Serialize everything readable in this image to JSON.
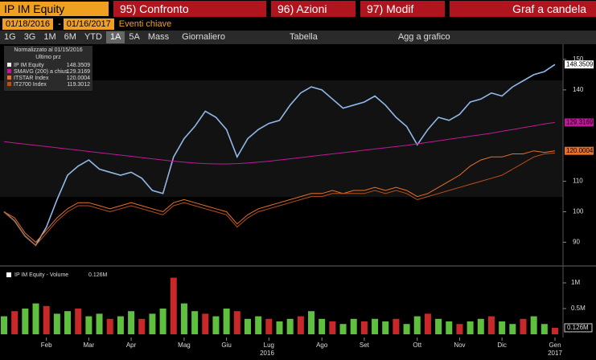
{
  "toolbar": {
    "ticker": "IP IM Equity",
    "menus": [
      "95) Confronto",
      "96) Azioni",
      "97) Modif"
    ],
    "chart_type": "Graf a candela",
    "start_date": "01/18/2016",
    "date_separator": "-",
    "end_date": "01/16/2017",
    "events": "Eventi chiave",
    "periods": [
      "1G",
      "3G",
      "1M",
      "6M",
      "YTD",
      "1A",
      "5A",
      "Mass"
    ],
    "frequency": "Giornaliero",
    "table": "Tabella",
    "add_to_chart": "Agg a grafico"
  },
  "chart_data": [
    {
      "type": "line",
      "legend_title": "Normalizzato al 01/15/2016",
      "legend_subtitle": "Ultimo prz",
      "categories": [
        null,
        null,
        null,
        null,
        "Feb",
        null,
        null,
        null,
        "Mar",
        null,
        null,
        null,
        "Apr",
        null,
        null,
        null,
        null,
        "Mag",
        null,
        null,
        null,
        "Giu",
        null,
        null,
        null,
        "Lug",
        null,
        null,
        null,
        null,
        "Ago",
        null,
        null,
        null,
        "Set",
        null,
        null,
        null,
        null,
        "Ott",
        null,
        null,
        null,
        "Nov",
        null,
        null,
        null,
        "Dic",
        null,
        null,
        null,
        null,
        "Gen"
      ],
      "year_labels": [
        "2016",
        "2017"
      ],
      "ylim": [
        83,
        155
      ],
      "yticks": [
        90,
        100,
        110,
        140,
        150
      ],
      "series": [
        {
          "name": "IP IM Equity",
          "color": "#8fb8e8",
          "values": [
            100,
            97,
            92,
            89,
            95,
            104,
            112,
            115,
            117,
            114,
            113,
            112,
            113,
            111,
            107,
            106,
            118,
            124,
            128,
            133,
            131,
            127,
            118,
            124,
            127,
            129,
            130,
            135,
            139,
            141,
            140,
            137,
            134,
            135,
            136,
            138,
            135,
            131,
            128,
            122,
            127,
            131,
            130,
            132,
            136,
            137,
            139,
            138,
            141,
            143,
            145,
            146,
            148.3509
          ]
        },
        {
          "name": "SMAVG (200) a chius",
          "color": "#c0189a",
          "values": [
            123,
            122.6,
            122.2,
            121.8,
            121.4,
            121,
            120.6,
            120.2,
            119.8,
            119.4,
            119,
            118.6,
            118.2,
            117.8,
            117.4,
            117,
            116.6,
            116.3,
            116,
            115.8,
            115.7,
            115.7,
            115.8,
            116,
            116.3,
            116.6,
            117,
            117.4,
            117.8,
            118.2,
            118.6,
            119,
            119.4,
            119.8,
            120.2,
            120.6,
            121,
            121.4,
            121.8,
            122.3,
            122.8,
            123.3,
            123.8,
            124.3,
            124.8,
            125.3,
            125.8,
            126.4,
            127,
            127.6,
            128.2,
            128.8,
            129.3169
          ]
        },
        {
          "name": "ITSTAR Index",
          "color": "#e8702a",
          "values": [
            100,
            98,
            93,
            90,
            94,
            98,
            101,
            103,
            103,
            102,
            101,
            102,
            103,
            102,
            101,
            100,
            103,
            104,
            103,
            102,
            101,
            100,
            96,
            99,
            101,
            102,
            103,
            104,
            105,
            106,
            106,
            107,
            106,
            107,
            107,
            108,
            107,
            108,
            107,
            105,
            106,
            108,
            110,
            112,
            115,
            117,
            118,
            118,
            119,
            119,
            120,
            119.5,
            120.0004
          ]
        },
        {
          "name": "IT2700 Index",
          "color": "#b8501a",
          "values": [
            100,
            97,
            92,
            89,
            93,
            97,
            100,
            102,
            102,
            101,
            100,
            101,
            102,
            101,
            100,
            99,
            102,
            103,
            102,
            101,
            100,
            99,
            95,
            98,
            100,
            101,
            102,
            103,
            104,
            105,
            105,
            106,
            106,
            106,
            106,
            107,
            106,
            107,
            106,
            104,
            105,
            106,
            107,
            108,
            109,
            110,
            111,
            112,
            114,
            116,
            118,
            119,
            119.3012
          ]
        }
      ]
    },
    {
      "type": "bar",
      "title": "IP IM Equity - Volume",
      "last_value_label": "0.126M",
      "color": "#5fbf3f",
      "ylim": [
        0,
        1.25
      ],
      "yticks": [
        {
          "value": 0.5,
          "label": "0.5M"
        },
        {
          "value": 1,
          "label": "1M"
        }
      ],
      "values": [
        0.35,
        0.45,
        0.5,
        0.6,
        0.55,
        0.4,
        0.45,
        0.5,
        0.35,
        0.4,
        0.3,
        0.35,
        0.45,
        0.3,
        0.4,
        0.5,
        1.1,
        0.6,
        0.45,
        0.4,
        0.35,
        0.5,
        0.45,
        0.3,
        0.35,
        0.3,
        0.25,
        0.3,
        0.35,
        0.45,
        0.3,
        0.25,
        0.2,
        0.3,
        0.25,
        0.3,
        0.25,
        0.3,
        0.2,
        0.35,
        0.4,
        0.3,
        0.25,
        0.2,
        0.25,
        0.3,
        0.35,
        0.25,
        0.2,
        0.3,
        0.35,
        0.2,
        0.126
      ]
    }
  ]
}
